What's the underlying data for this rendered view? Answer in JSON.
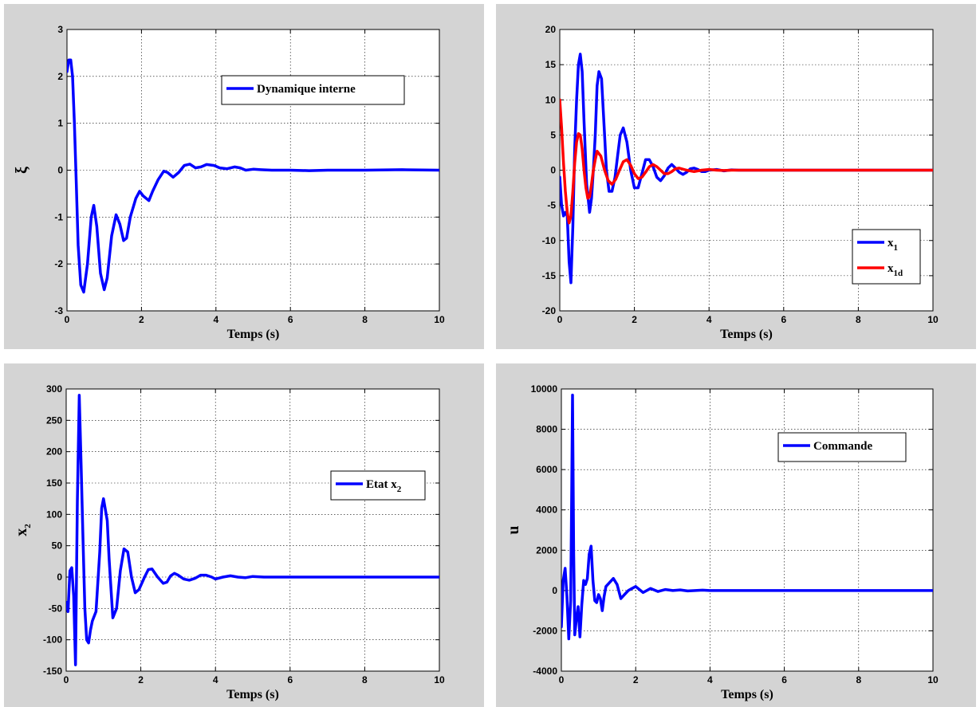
{
  "colors": {
    "panel_bg": "#d4d4d4",
    "blue": "#0000ff",
    "red": "#ff0000"
  },
  "chart_data": [
    {
      "type": "line",
      "xlabel": "Temps (s)",
      "ylabel": "ξ",
      "ylabel_sub": "",
      "xlim": [
        0,
        10
      ],
      "ylim": [
        -3,
        3
      ],
      "xticks": [
        0,
        2,
        4,
        6,
        8,
        10
      ],
      "yticks": [
        -3,
        -2,
        -1,
        0,
        1,
        2,
        3
      ],
      "grid": true,
      "legend_position": "top-right",
      "series": [
        {
          "name": "Dynamique interne",
          "name_sub": "",
          "color": "#0000ff",
          "x": [
            0,
            0.05,
            0.1,
            0.15,
            0.2,
            0.25,
            0.3,
            0.37,
            0.45,
            0.55,
            0.65,
            0.72,
            0.8,
            0.9,
            1.0,
            1.08,
            1.2,
            1.32,
            1.42,
            1.52,
            1.6,
            1.7,
            1.85,
            1.95,
            2.05,
            2.2,
            2.3,
            2.45,
            2.6,
            2.7,
            2.85,
            3.0,
            3.15,
            3.3,
            3.45,
            3.6,
            3.75,
            3.95,
            4.1,
            4.3,
            4.5,
            4.65,
            4.8,
            5.0,
            5.2,
            5.5,
            6.0,
            6.5,
            7.0,
            8.0,
            9.0,
            10.0
          ],
          "y": [
            2.1,
            2.35,
            2.35,
            2.0,
            1.0,
            -0.3,
            -1.6,
            -2.45,
            -2.6,
            -2.0,
            -1.0,
            -0.75,
            -1.2,
            -2.2,
            -2.55,
            -2.3,
            -1.4,
            -0.95,
            -1.15,
            -1.5,
            -1.45,
            -1.0,
            -0.6,
            -0.45,
            -0.55,
            -0.65,
            -0.45,
            -0.2,
            -0.02,
            -0.05,
            -0.15,
            -0.05,
            0.1,
            0.13,
            0.05,
            0.07,
            0.12,
            0.1,
            0.05,
            0.03,
            0.07,
            0.05,
            0.0,
            0.02,
            0.01,
            0.0,
            0.0,
            -0.01,
            0.0,
            0.0,
            0.01,
            0.0
          ]
        }
      ]
    },
    {
      "type": "line",
      "xlabel": "Temps (s)",
      "ylabel": "",
      "ylabel_sub": "",
      "xlim": [
        0,
        10
      ],
      "ylim": [
        -20,
        20
      ],
      "xticks": [
        0,
        2,
        4,
        6,
        8,
        10
      ],
      "yticks": [
        -20,
        -15,
        -10,
        -5,
        0,
        5,
        10,
        15,
        20
      ],
      "grid": true,
      "legend_position": "bottom-right",
      "series": [
        {
          "name": "x",
          "name_sub": "1",
          "color": "#0000ff",
          "x": [
            0,
            0.05,
            0.1,
            0.15,
            0.2,
            0.25,
            0.3,
            0.35,
            0.4,
            0.45,
            0.5,
            0.55,
            0.6,
            0.65,
            0.72,
            0.8,
            0.85,
            0.9,
            0.95,
            1.0,
            1.05,
            1.12,
            1.2,
            1.25,
            1.32,
            1.4,
            1.48,
            1.55,
            1.62,
            1.7,
            1.8,
            1.9,
            2.0,
            2.1,
            2.2,
            2.3,
            2.4,
            2.5,
            2.6,
            2.7,
            2.8,
            2.9,
            3.0,
            3.1,
            3.2,
            3.3,
            3.4,
            3.5,
            3.6,
            3.7,
            3.8,
            3.9,
            4.0,
            4.2,
            4.4,
            4.6,
            4.8,
            5.0,
            5.5,
            6.0,
            10.0
          ],
          "y": [
            -1,
            -5,
            -6.5,
            -6,
            -6.5,
            -13,
            -16,
            -8,
            3,
            10,
            15,
            16.5,
            14,
            7,
            -2,
            -6,
            -4,
            0,
            5,
            12,
            14,
            13,
            5,
            0,
            -3,
            -3,
            -1,
            2,
            5,
            6,
            4,
            0,
            -2.5,
            -2.5,
            -0.5,
            1.5,
            1.5,
            0.5,
            -1,
            -1.5,
            -0.8,
            0.3,
            0.8,
            0.3,
            -0.3,
            -0.6,
            -0.3,
            0.2,
            0.3,
            0.1,
            -0.2,
            -0.2,
            0,
            0.1,
            -0.1,
            0.05,
            0,
            0,
            0,
            0,
            0
          ]
        },
        {
          "name": "x",
          "name_sub": "1d",
          "color": "#ff0000",
          "x": [
            0,
            0.05,
            0.1,
            0.15,
            0.2,
            0.25,
            0.3,
            0.35,
            0.4,
            0.45,
            0.5,
            0.55,
            0.6,
            0.65,
            0.7,
            0.75,
            0.8,
            0.85,
            0.9,
            0.95,
            1.0,
            1.1,
            1.2,
            1.3,
            1.4,
            1.5,
            1.6,
            1.7,
            1.8,
            1.9,
            2.0,
            2.1,
            2.2,
            2.3,
            2.4,
            2.5,
            2.6,
            2.7,
            2.8,
            2.9,
            3.0,
            3.1,
            3.2,
            3.4,
            3.6,
            3.8,
            4.0,
            4.2,
            4.4,
            4.6,
            4.8,
            5.0,
            6.0,
            10.0
          ],
          "y": [
            10,
            6,
            1,
            -3,
            -6,
            -7.5,
            -6.5,
            -3,
            1,
            4,
            5.2,
            5,
            3,
            0,
            -2.5,
            -4,
            -3.8,
            -2,
            0,
            1.5,
            2.7,
            2,
            0,
            -1.5,
            -2,
            -1.3,
            0,
            1.2,
            1.5,
            0.7,
            -0.5,
            -1.2,
            -1,
            -0.3,
            0.5,
            0.8,
            0.5,
            0,
            -0.5,
            -0.5,
            -0.2,
            0.2,
            0.3,
            0,
            -0.2,
            0,
            0.1,
            0,
            -0.05,
            0,
            0,
            0,
            0,
            0
          ]
        }
      ]
    },
    {
      "type": "line",
      "xlabel": "Temps (s)",
      "ylabel": "x",
      "ylabel_sub": "2",
      "xlim": [
        0,
        10
      ],
      "ylim": [
        -150,
        300
      ],
      "xticks": [
        0,
        2,
        4,
        6,
        8,
        10
      ],
      "yticks": [
        -150,
        -100,
        -50,
        0,
        50,
        100,
        150,
        200,
        250,
        300
      ],
      "grid": true,
      "legend_position": "middle-right",
      "series": [
        {
          "name": "Etat x",
          "name_sub": "2",
          "color": "#0000ff",
          "x": [
            0,
            0.05,
            0.1,
            0.15,
            0.2,
            0.25,
            0.3,
            0.35,
            0.4,
            0.45,
            0.5,
            0.55,
            0.6,
            0.65,
            0.7,
            0.8,
            0.9,
            0.95,
            1.0,
            1.1,
            1.15,
            1.25,
            1.35,
            1.45,
            1.55,
            1.65,
            1.75,
            1.85,
            1.95,
            2.1,
            2.2,
            2.3,
            2.45,
            2.6,
            2.7,
            2.8,
            2.9,
            3.0,
            3.15,
            3.3,
            3.45,
            3.6,
            3.75,
            3.9,
            4.0,
            4.2,
            4.4,
            4.6,
            4.8,
            5.0,
            5.3,
            5.5,
            6.0,
            10.0
          ],
          "y": [
            -40,
            -55,
            10,
            15,
            -30,
            -140,
            120,
            290,
            180,
            60,
            -50,
            -100,
            -105,
            -85,
            -70,
            -55,
            40,
            110,
            125,
            90,
            30,
            -65,
            -50,
            10,
            45,
            40,
            0,
            -25,
            -20,
            0,
            12,
            13,
            0,
            -10,
            -8,
            2,
            6,
            3,
            -3,
            -5,
            -2,
            3,
            3,
            0,
            -3,
            0,
            2,
            0,
            -1,
            1,
            0,
            0,
            0,
            0
          ]
        }
      ]
    },
    {
      "type": "line",
      "xlabel": "Temps (s)",
      "ylabel": "u",
      "ylabel_sub": "",
      "xlim": [
        0,
        10
      ],
      "ylim": [
        -4000,
        10000
      ],
      "xticks": [
        0,
        2,
        4,
        6,
        8,
        10
      ],
      "yticks": [
        -4000,
        -2000,
        0,
        2000,
        4000,
        6000,
        8000,
        10000
      ],
      "grid": true,
      "legend_position": "top-right",
      "series": [
        {
          "name": "Commande",
          "name_sub": "",
          "color": "#0000ff",
          "x": [
            0,
            0.05,
            0.1,
            0.15,
            0.2,
            0.25,
            0.28,
            0.3,
            0.33,
            0.36,
            0.4,
            0.45,
            0.5,
            0.55,
            0.6,
            0.65,
            0.7,
            0.75,
            0.8,
            0.85,
            0.9,
            0.95,
            1.0,
            1.05,
            1.1,
            1.15,
            1.2,
            1.3,
            1.4,
            1.5,
            1.6,
            1.7,
            1.8,
            1.9,
            2.0,
            2.2,
            2.4,
            2.6,
            2.8,
            3.0,
            3.2,
            3.4,
            3.6,
            3.8,
            4.0,
            4.5,
            5.0,
            6.0,
            10.0
          ],
          "y": [
            -1800,
            500,
            1100,
            -300,
            -2400,
            -500,
            5000,
            9700,
            2000,
            -2200,
            -1500,
            -800,
            -2300,
            -700,
            500,
            300,
            600,
            1800,
            2200,
            500,
            -500,
            -600,
            -200,
            -400,
            -1000,
            -300,
            200,
            400,
            600,
            300,
            -400,
            -200,
            0,
            100,
            200,
            -100,
            100,
            -50,
            50,
            0,
            30,
            -20,
            0,
            20,
            0,
            0,
            0,
            0,
            0
          ]
        }
      ]
    }
  ]
}
